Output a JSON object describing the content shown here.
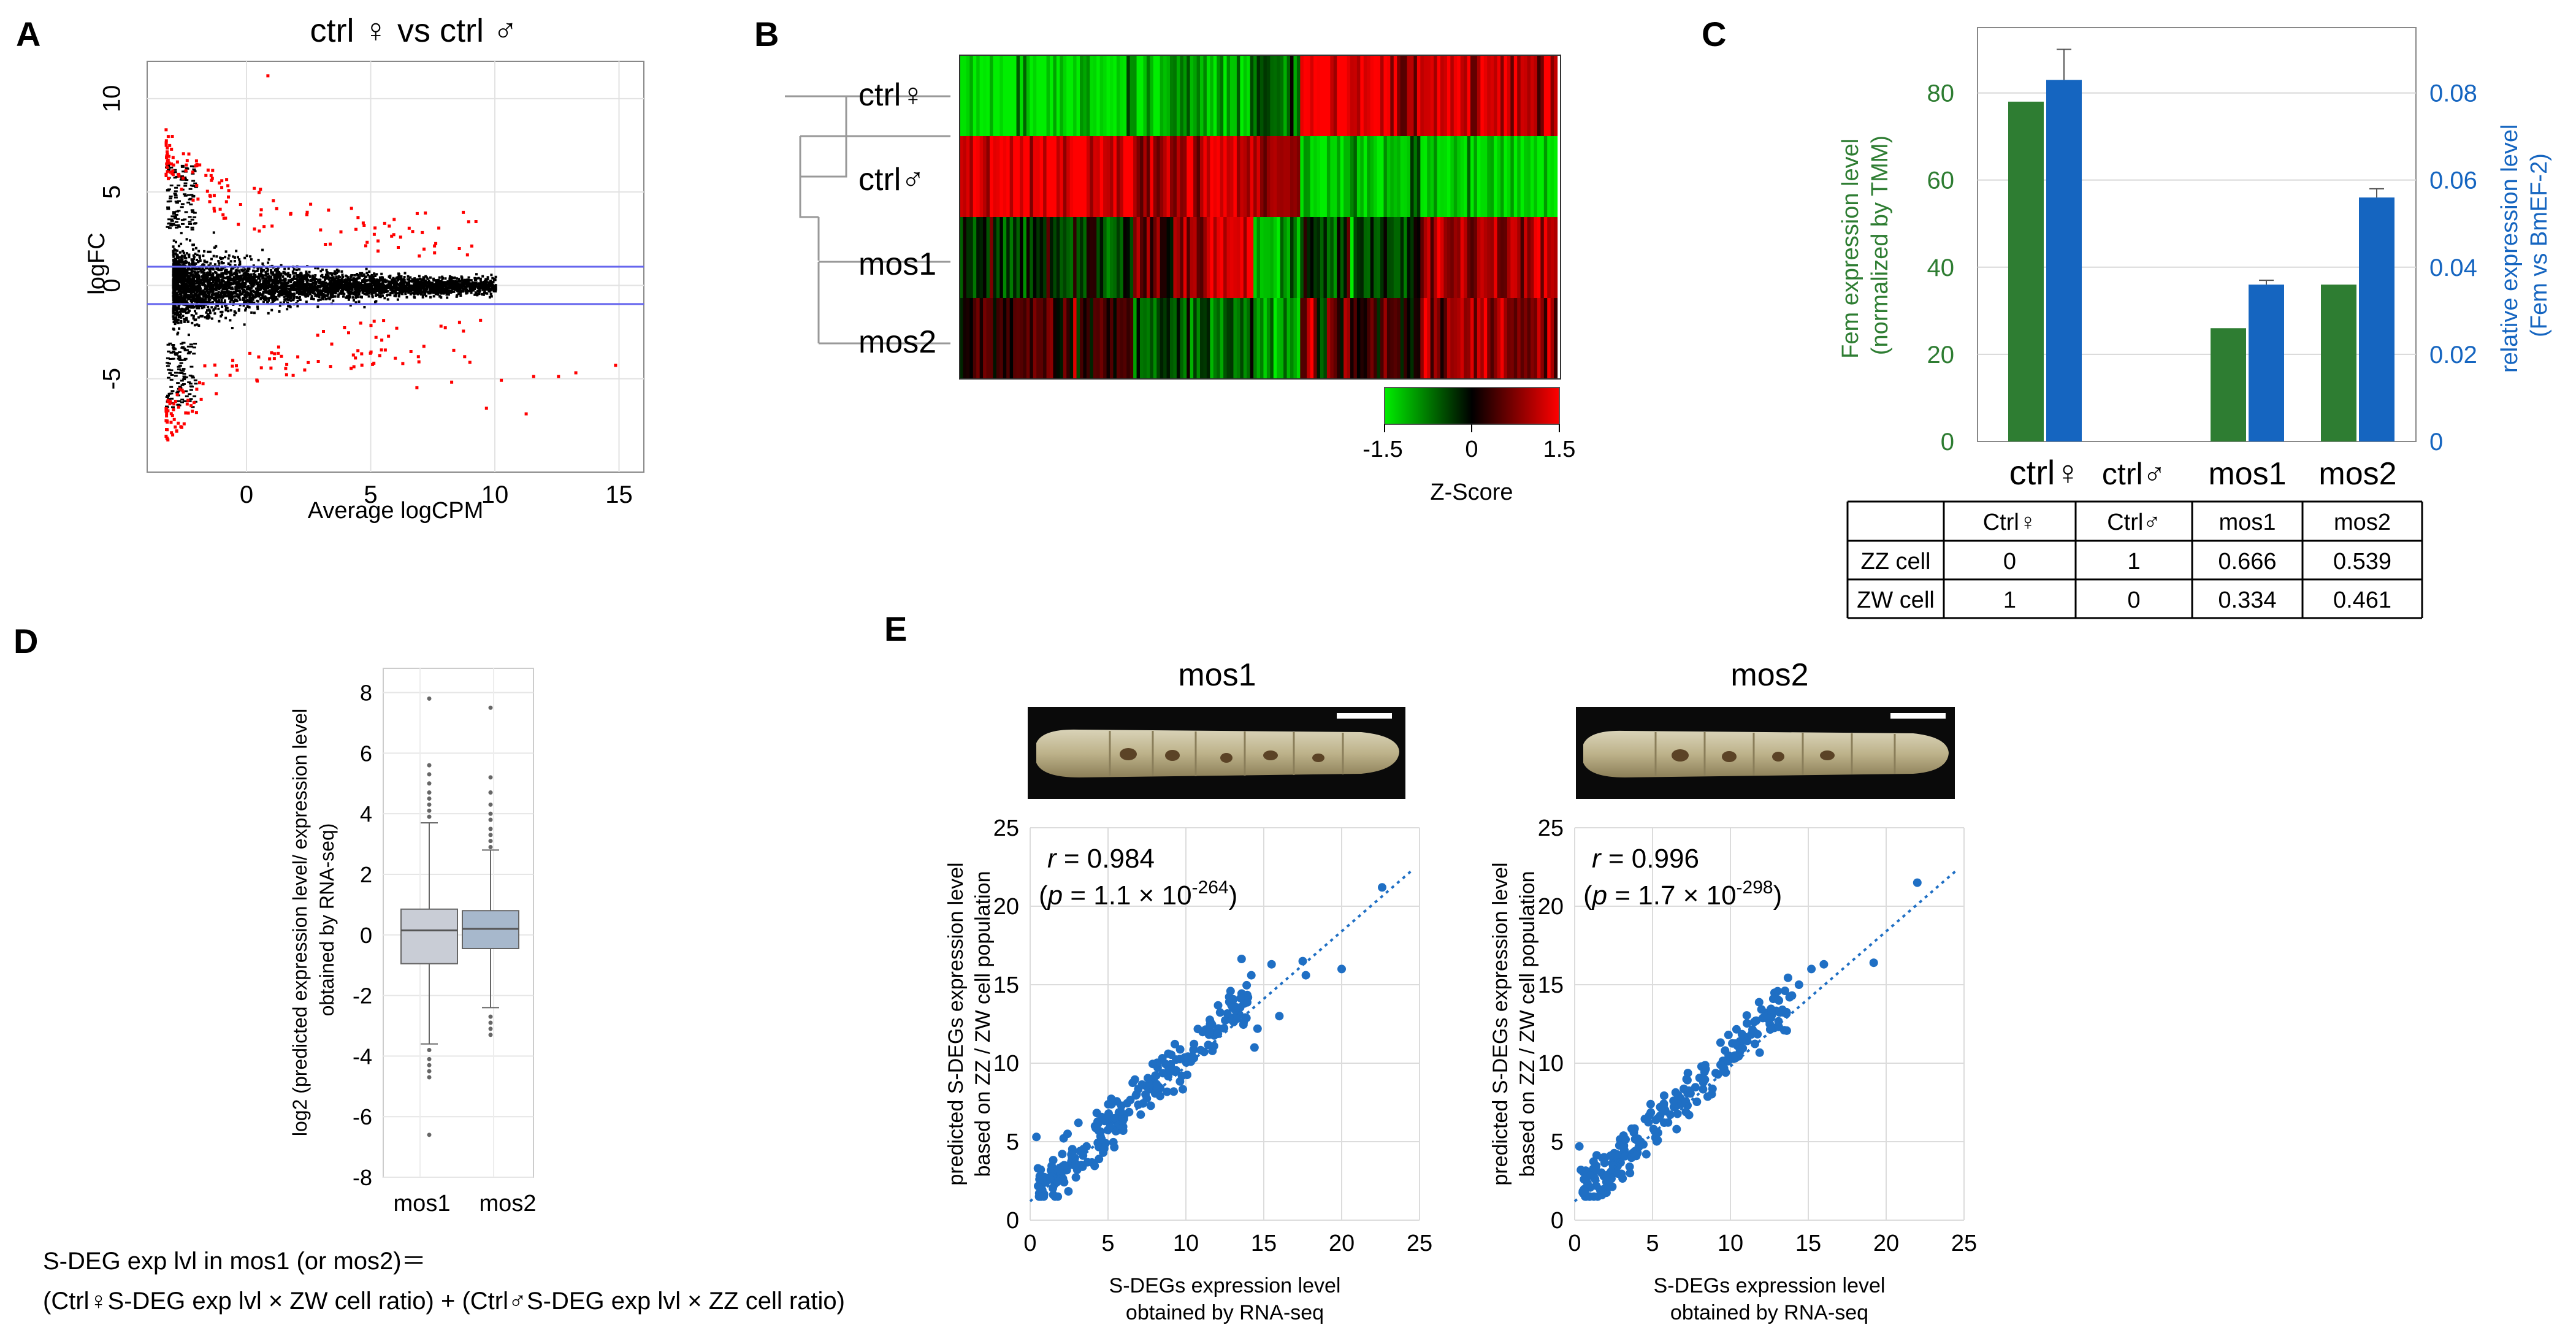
{
  "panel_labels": {
    "A": "A",
    "B": "B",
    "C": "C",
    "D": "D",
    "E": "E"
  },
  "chart_data": [
    {
      "id": "A",
      "type": "scatter",
      "title": "ctrl ♀ vs ctrl ♂",
      "xlabel": "Average logCPM",
      "ylabel": "logFC",
      "xlim": [
        -4,
        16
      ],
      "ylim": [
        -10,
        12
      ],
      "xticks": [
        "0",
        "5",
        "10",
        "15"
      ],
      "yticks": [
        "-5",
        "0",
        "5",
        "10"
      ],
      "threshold_lines": [
        1,
        -1
      ],
      "point_colors": {
        "background": "#000000",
        "significant": "#ff0000",
        "threshold": "#6666ee"
      },
      "grid": true
    },
    {
      "id": "B",
      "type": "heatmap",
      "rows": [
        "ctrl♀",
        "ctrl♂",
        "mos1",
        "mos2"
      ],
      "colorbar": {
        "min_label": "-1.5",
        "mid_label": "0",
        "max_label": "1.5",
        "title": "Z-Score"
      },
      "colors": {
        "low": "#00ee00",
        "mid": "#000000",
        "high": "#ff0000"
      },
      "blocks": [
        {
          "span": 0.29,
          "z": [
            -1.4,
            1.4,
            -0.3,
            0.3
          ]
        },
        {
          "span": 0.12,
          "z": [
            -1.0,
            1.0,
            0.6,
            -0.5
          ]
        },
        {
          "span": 0.08,
          "z": [
            -1.2,
            1.2,
            1.5,
            -0.7
          ]
        },
        {
          "span": 0.08,
          "z": [
            -0.6,
            0.8,
            -0.8,
            -0.9
          ]
        },
        {
          "span": 0.16,
          "z": [
            1.4,
            -1.3,
            -0.4,
            0.4
          ]
        },
        {
          "span": 0.04,
          "z": [
            0.9,
            -0.7,
            -0.2,
            0.2
          ]
        },
        {
          "span": 0.23,
          "z": [
            1.2,
            -1.4,
            1.0,
            0.8
          ]
        }
      ]
    },
    {
      "id": "C",
      "type": "bar",
      "categories": [
        "ctrl♀",
        "ctrl♂",
        "mos1",
        "mos2"
      ],
      "series": [
        {
          "name": "Fem expression level (normalized by TMM)",
          "axis": "left",
          "color": "#2e7d32",
          "values": [
            78,
            0,
            26,
            36
          ]
        },
        {
          "name": "relative expression level (Fem vs BmEF-2)",
          "axis": "right",
          "color": "#1565c0",
          "values": [
            0.083,
            0,
            0.036,
            0.056
          ],
          "errors": [
            0.007,
            0,
            0.001,
            0.002
          ]
        }
      ],
      "ylim_left": [
        0,
        95
      ],
      "ylim_right": [
        0,
        0.095
      ],
      "yticks_left": [
        "0",
        "20",
        "40",
        "60",
        "80"
      ],
      "yticks_right": [
        "0",
        "0.02",
        "0.04",
        "0.06",
        "0.08"
      ],
      "ylabel_left": [
        "Fem expression level",
        "(normalized by TMM)"
      ],
      "ylabel_right": [
        "relative expression level",
        "(Fem vs BmEF-2)"
      ]
    },
    {
      "id": "C-table",
      "type": "table",
      "columns": [
        "",
        "Ctrl♀",
        "Ctrl♂",
        "mos1",
        "mos2"
      ],
      "rows": [
        [
          "ZZ cell",
          "0",
          "1",
          "0.666",
          "0.539"
        ],
        [
          "ZW cell",
          "1",
          "0",
          "0.334",
          "0.461"
        ]
      ]
    },
    {
      "id": "D",
      "type": "box",
      "categories": [
        "mos1",
        "mos2"
      ],
      "boxes": [
        {
          "q1": -0.95,
          "median": 0.15,
          "q3": 0.85,
          "whisker_low": -3.6,
          "whisker_high": 3.7,
          "outliers": [
            7.8,
            5.6,
            5.3,
            5.0,
            4.7,
            4.5,
            4.3,
            4.1,
            3.9,
            -3.8,
            -4.1,
            -4.3,
            -4.5,
            -4.7,
            -6.6
          ],
          "fill": "#c9cdd6"
        },
        {
          "q1": -0.45,
          "median": 0.2,
          "q3": 0.8,
          "whisker_low": -2.4,
          "whisker_high": 2.8,
          "outliers": [
            7.5,
            5.2,
            4.7,
            4.3,
            4.0,
            3.8,
            3.5,
            3.3,
            3.1,
            2.9,
            -2.7,
            -2.9,
            -3.1,
            -3.3
          ],
          "fill": "#a7b8cc"
        }
      ],
      "ylim": [
        -8,
        8.8
      ],
      "yticks": [
        "-8",
        "-6",
        "-4",
        "-2",
        "0",
        "2",
        "4",
        "6",
        "8"
      ],
      "ylabel": [
        "log2 (predicted expression level/ expression level",
        "obtained by RNA-seq)"
      ]
    },
    {
      "id": "E-mos1",
      "type": "scatter",
      "title": "mos1",
      "xlim": [
        0,
        25
      ],
      "ylim": [
        0,
        25
      ],
      "xticks": [
        "0",
        "5",
        "10",
        "15",
        "20",
        "25"
      ],
      "yticks": [
        "0",
        "5",
        "10",
        "15",
        "20",
        "25"
      ],
      "xlabel": [
        "S-DEGs expression level",
        "obtained by RNA-seq"
      ],
      "ylabel": [
        "predicted S-DEGs expression level",
        "based on ZZ / ZW cell population"
      ],
      "r": "0.984",
      "p_mantissa": "1.1",
      "p_exponent": "-264",
      "color": "#1f6fc4",
      "outliers": [
        [
          22.6,
          21.2
        ],
        [
          20.0,
          16.0
        ],
        [
          17.5,
          16.5
        ],
        [
          17.7,
          15.6
        ],
        [
          15.5,
          16.3
        ],
        [
          14.2,
          15.6
        ],
        [
          14.6,
          12.2
        ],
        [
          14.4,
          11.0
        ],
        [
          16.0,
          13.0
        ],
        [
          0.4,
          5.3
        ],
        [
          0.5,
          3.3
        ],
        [
          0.6,
          2.6
        ],
        [
          2.4,
          5.5
        ],
        [
          3.1,
          6.2
        ]
      ],
      "seed": 7
    },
    {
      "id": "E-mos2",
      "type": "scatter",
      "title": "mos2",
      "xlim": [
        0,
        25
      ],
      "ylim": [
        0,
        25
      ],
      "xticks": [
        "0",
        "5",
        "10",
        "15",
        "20",
        "25"
      ],
      "yticks": [
        "0",
        "5",
        "10",
        "15",
        "20",
        "25"
      ],
      "xlabel": [
        "S-DEGs expression level",
        "obtained by RNA-seq"
      ],
      "ylabel": [
        "predicted S-DEGs expression level",
        "based on ZZ / ZW cell population"
      ],
      "r": "0.996",
      "p_mantissa": "1.7",
      "p_exponent": "-298",
      "color": "#1f6fc4",
      "outliers": [
        [
          22.0,
          21.5
        ],
        [
          19.2,
          16.4
        ],
        [
          16.0,
          16.3
        ],
        [
          15.2,
          16.0
        ],
        [
          14.4,
          15.0
        ],
        [
          13.8,
          14.2
        ],
        [
          0.3,
          4.7
        ],
        [
          0.4,
          3.2
        ],
        [
          0.6,
          2.6
        ],
        [
          2.3,
          4.1
        ],
        [
          4.6,
          4.2
        ]
      ],
      "seed": 13
    }
  ],
  "formula": {
    "line1": "S-DEG exp lvl in mos1 (or mos2)＝",
    "line2": "(Ctrl♀S-DEG exp lvl × ZW cell ratio) + (Ctrl♂S-DEG exp lvl × ZZ cell ratio)"
  },
  "larva_images": [
    {
      "description": "larva"
    },
    {
      "description": "larva"
    }
  ]
}
